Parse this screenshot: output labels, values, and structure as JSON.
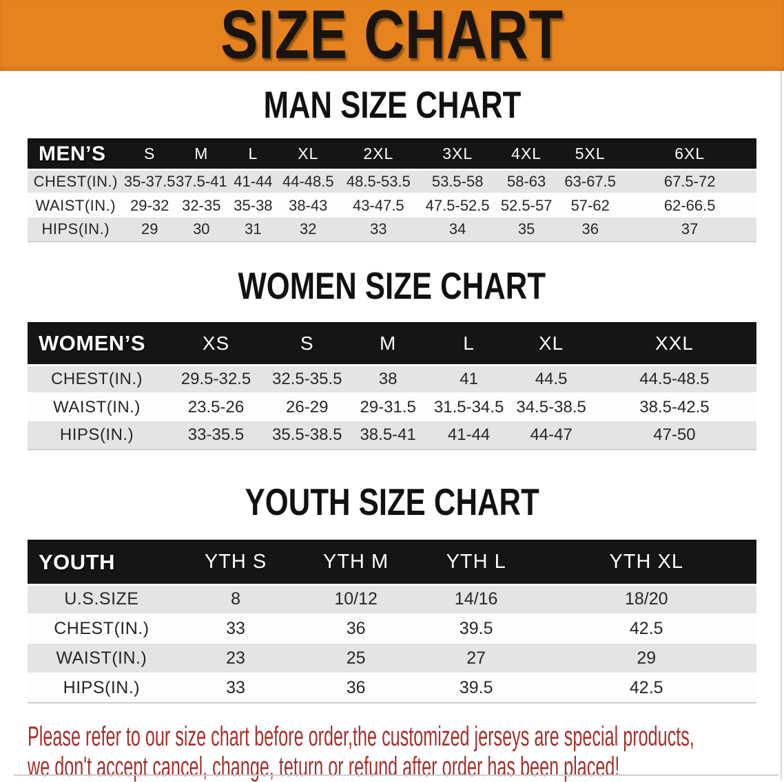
{
  "banner": {
    "title": "SIZE CHART"
  },
  "tables": [
    {
      "heading": "MAN SIZE CHART",
      "label": "MEN’S",
      "columns": [
        "S",
        "M",
        "L",
        "XL",
        "2XL",
        "3XL",
        "4XL",
        "5XL",
        "6XL"
      ],
      "rows": [
        {
          "label": "CHEST(IN.)",
          "values": [
            "35-37.5",
            "37.5-41",
            "41-44",
            "44-48.5",
            "48.5-53.5",
            "53.5-58",
            "58-63",
            "63-67.5",
            "67.5-72"
          ]
        },
        {
          "label": "WAIST(IN.)",
          "values": [
            "29-32",
            "32-35",
            "35-38",
            "38-43",
            "43-47.5",
            "47.5-52.5",
            "52.5-57",
            "57-62",
            "62-66.5"
          ]
        },
        {
          "label": "HIPS(IN.)",
          "values": [
            "29",
            "30",
            "31",
            "32",
            "33",
            "34",
            "35",
            "36",
            "37"
          ]
        }
      ]
    },
    {
      "heading": "WOMEN SIZE CHART",
      "label": "WOMEN’S",
      "columns": [
        "XS",
        "S",
        "M",
        "L",
        "XL",
        "XXL"
      ],
      "rows": [
        {
          "label": "CHEST(IN.)",
          "values": [
            "29.5-32.5",
            "32.5-35.5",
            "38",
            "41",
            "44.5",
            "44.5-48.5"
          ]
        },
        {
          "label": "WAIST(IN.)",
          "values": [
            "23.5-26",
            "26-29",
            "29-31.5",
            "31.5-34.5",
            "34.5-38.5",
            "38.5-42.5"
          ]
        },
        {
          "label": "HIPS(IN.)",
          "values": [
            "33-35.5",
            "35.5-38.5",
            "38.5-41",
            "41-44",
            "44-47",
            "47-50"
          ]
        }
      ]
    },
    {
      "heading": "YOUTH SIZE CHART",
      "label": "YOUTH",
      "columns": [
        "YTH S",
        "YTH M",
        "YTH L",
        "YTH XL"
      ],
      "rows": [
        {
          "label": "U.S.SIZE",
          "values": [
            "8",
            "10/12",
            "14/16",
            "18/20"
          ]
        },
        {
          "label": "CHEST(IN.)",
          "values": [
            "33",
            "36",
            "39.5",
            "42.5"
          ]
        },
        {
          "label": "WAIST(IN.)",
          "values": [
            "23",
            "25",
            "27",
            "29"
          ]
        },
        {
          "label": "HIPS(IN.)",
          "values": [
            "33",
            "36",
            "39.5",
            "42.5"
          ]
        }
      ]
    }
  ],
  "disclaimer": {
    "line1": "Please refer to our size chart before order,the customized jerseys are special products,",
    "line2": "we don't accept cancel, change, teturn or refund after order has been placed!"
  },
  "colors": {
    "banner_bg": "#E6831E",
    "header_bar_bg": "#151514",
    "row_stripe": "#E4E4E4",
    "disclaimer_text": "#A5302B"
  }
}
